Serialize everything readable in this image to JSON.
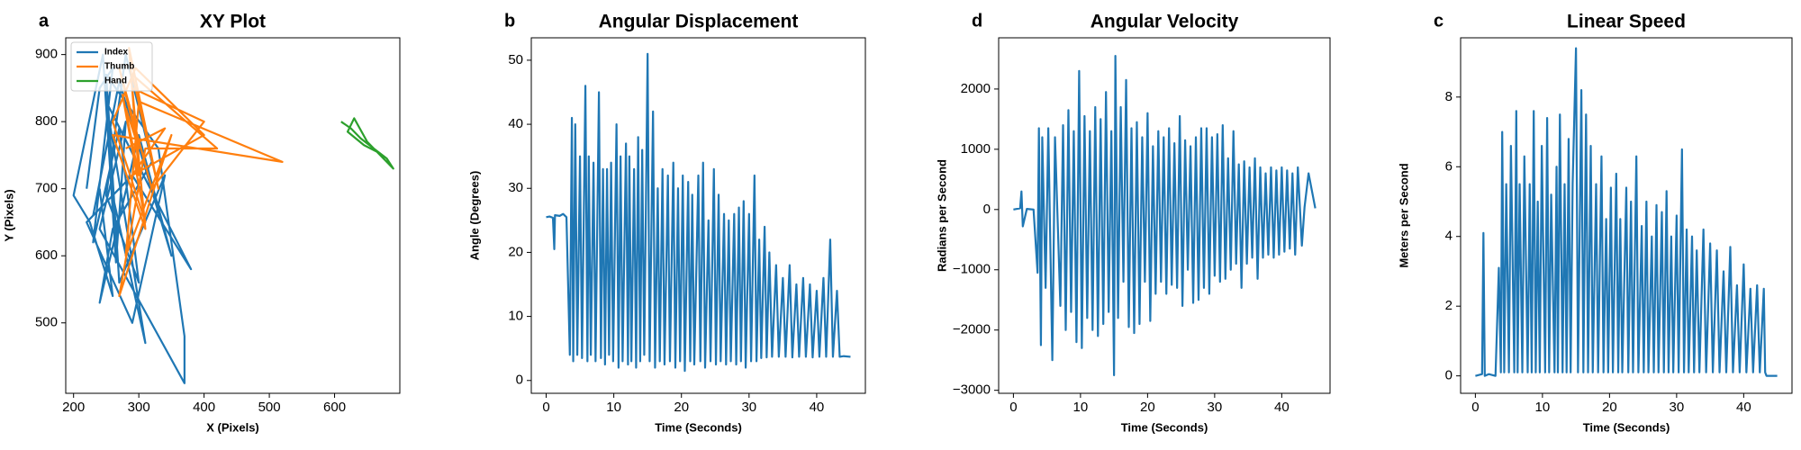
{
  "chart_data": [
    {
      "type": "line",
      "panel_label": "a",
      "title": "XY Plot",
      "x_label": "X (Pixels)",
      "y_label": "Y (Pixels)",
      "xlim": [
        188,
        700
      ],
      "ylim": [
        395,
        925
      ],
      "xticks": [
        200,
        300,
        400,
        500,
        600
      ],
      "yticks": [
        500,
        600,
        700,
        800,
        900
      ],
      "legend": "upper left",
      "series": [
        {
          "name": "Index",
          "color": "#1f77b4",
          "x": [
            220,
            240,
            260,
            230,
            270,
            300,
            250,
            280,
            320,
            260,
            240,
            300,
            350,
            270,
            230,
            290,
            380,
            250,
            310,
            260,
            220,
            290,
            340,
            270,
            250,
            330,
            370,
            370,
            240,
            280,
            265,
            245,
            200,
            225,
            260,
            240
          ],
          "values": [
            700,
            850,
            880,
            620,
            790,
            560,
            690,
            900,
            740,
            640,
            530,
            780,
            600,
            860,
            660,
            720,
            580,
            830,
            470,
            690,
            650,
            500,
            720,
            560,
            870,
            760,
            480,
            410,
            640,
            800,
            590,
            900,
            690,
            650,
            540,
            700
          ]
        },
        {
          "name": "Thumb",
          "color": "#ff7f0e",
          "x": [
            280,
            300,
            270,
            320,
            400,
            290,
            310,
            260,
            520,
            300,
            280,
            350,
            270,
            310,
            420,
            290,
            330,
            285,
            300,
            275,
            310,
            260,
            295,
            400,
            290,
            340,
            280
          ],
          "values": [
            820,
            760,
            880,
            700,
            800,
            850,
            640,
            780,
            740,
            830,
            600,
            780,
            540,
            760,
            760,
            870,
            700,
            910,
            720,
            840,
            650,
            800,
            880,
            780,
            720,
            790,
            760
          ]
        },
        {
          "name": "Hand",
          "color": "#2ca02c",
          "x": [
            610,
            625,
            640,
            660,
            680,
            690,
            670,
            650,
            630,
            620,
            645,
            665,
            685
          ],
          "values": [
            800,
            790,
            775,
            760,
            745,
            730,
            750,
            770,
            805,
            785,
            765,
            755,
            735
          ]
        }
      ]
    },
    {
      "type": "line",
      "panel_label": "b",
      "title": "Angular Displacement",
      "x_label": "Time (Seconds)",
      "y_label": "Angle (Degrees)",
      "xlim": [
        -2.2,
        47.2
      ],
      "ylim": [
        -2,
        53.5
      ],
      "xticks": [
        0,
        10,
        20,
        30,
        40
      ],
      "yticks": [
        0,
        10,
        20,
        30,
        40,
        50
      ],
      "series": [
        {
          "name": "Angle",
          "color": "#1f77b4",
          "x": [
            0,
            0.5,
            1,
            1.2,
            1.3,
            2,
            2.5,
            3,
            3.5,
            3.8,
            4.0,
            4.3,
            4.6,
            5,
            5.3,
            5.8,
            6.1,
            6.3,
            6.6,
            7,
            7.3,
            7.8,
            8.1,
            8.4,
            8.7,
            9,
            9.3,
            9.6,
            9.9,
            10.4,
            10.7,
            11,
            11.3,
            11.8,
            12.1,
            12.3,
            12.6,
            13,
            13.3,
            13.6,
            13.9,
            14.2,
            14.5,
            15,
            15.3,
            15.8,
            16.1,
            16.5,
            16.8,
            17.2,
            17.5,
            18,
            18.3,
            18.8,
            19.1,
            19.5,
            19.8,
            20.2,
            20.5,
            21,
            21.3,
            21.6,
            21.9,
            22.5,
            22.8,
            23.2,
            23.5,
            24,
            24.3,
            24.8,
            25.1,
            25.5,
            25.8,
            26.3,
            26.6,
            27,
            27.3,
            27.8,
            28.1,
            28.5,
            28.8,
            29.2,
            29.5,
            30,
            30.3,
            30.8,
            31.1,
            31.5,
            31.8,
            32.3,
            32.6,
            33,
            33.4,
            34,
            34.4,
            35,
            35.4,
            36,
            36.4,
            37,
            37.4,
            38,
            38.4,
            39,
            39.4,
            40,
            40.4,
            41,
            41.4,
            42,
            42.4,
            43,
            43.4,
            44,
            45
          ],
          "values": [
            25.5,
            25.6,
            25.4,
            20.5,
            25.8,
            25.7,
            26,
            25.5,
            4,
            41,
            3,
            40,
            4,
            35,
            3.5,
            46,
            3,
            35,
            4,
            34,
            3,
            45,
            3.5,
            33,
            2.5,
            33,
            4,
            34,
            3,
            40,
            2,
            35,
            3,
            37,
            2.5,
            35,
            3,
            33,
            2,
            38,
            3,
            36,
            4,
            51,
            3,
            42,
            2,
            30,
            3,
            33,
            2.5,
            32,
            3,
            34,
            2,
            30,
            3,
            32,
            1.5,
            31,
            3,
            29,
            2.5,
            32,
            3,
            34,
            2,
            25,
            3,
            33,
            2.5,
            29,
            3,
            26,
            2.5,
            25,
            3,
            26,
            2.5,
            27,
            3,
            28,
            2,
            26,
            3,
            32,
            3,
            22,
            3.5,
            24,
            3.6,
            20,
            3.7,
            18,
            3.7,
            16,
            3.7,
            18,
            3.6,
            15,
            3.7,
            16,
            3.7,
            15,
            3.6,
            14,
            3.7,
            16,
            3.7,
            22,
            3.7,
            14,
            3.7,
            3.8,
            3.7
          ]
        }
      ]
    },
    {
      "type": "line",
      "panel_label": "d",
      "title": "Angular Velocity",
      "x_label": "Time (Seconds)",
      "y_label": "Radians per Second",
      "xlim": [
        -2.2,
        47.2
      ],
      "ylim": [
        -3050,
        2850
      ],
      "xticks": [
        0,
        10,
        20,
        30,
        40
      ],
      "yticks": [
        {
          "value": -3000,
          "label": "−3000"
        },
        {
          "value": -2000,
          "label": "−2000"
        },
        {
          "value": -1000,
          "label": "−1000"
        },
        0,
        1000,
        2000
      ],
      "series": [
        {
          "name": "Velocity",
          "color": "#1f77b4",
          "x": [
            0,
            1,
            1.2,
            1.4,
            2,
            3,
            3.6,
            3.8,
            4.1,
            4.3,
            4.8,
            5.2,
            5.8,
            6.2,
            7,
            7.4,
            7.8,
            8.2,
            8.6,
            9,
            9.4,
            9.8,
            10.2,
            10.6,
            11,
            11.4,
            11.8,
            12.2,
            12.6,
            13,
            13.4,
            13.8,
            14.2,
            14.6,
            15,
            15.2,
            15.6,
            16,
            16.4,
            16.8,
            17.2,
            17.6,
            18,
            18.4,
            18.8,
            19.2,
            19.6,
            20,
            20.4,
            20.8,
            21.2,
            21.6,
            22,
            22.4,
            22.8,
            23.2,
            23.6,
            24,
            24.4,
            24.8,
            25.2,
            25.6,
            26,
            26.4,
            26.8,
            27.2,
            27.6,
            28,
            28.4,
            28.8,
            29.2,
            29.6,
            30,
            30.4,
            30.8,
            31.2,
            31.6,
            32,
            32.4,
            32.8,
            33.2,
            33.6,
            34,
            34.4,
            34.8,
            35.2,
            35.6,
            36,
            36.4,
            36.8,
            37.2,
            37.6,
            38,
            38.4,
            38.8,
            39.2,
            39.6,
            40,
            40.4,
            40.8,
            41.2,
            41.6,
            42,
            42.4,
            43,
            43.4,
            44,
            45
          ],
          "values": [
            0,
            20,
            300,
            -280,
            10,
            0,
            -1050,
            1350,
            -2250,
            1200,
            -1300,
            1350,
            -2500,
            1200,
            -1600,
            1400,
            -2000,
            1650,
            -1700,
            1300,
            -2200,
            2300,
            -2300,
            1550,
            -1800,
            1300,
            -2000,
            1700,
            -2100,
            1500,
            -1900,
            1950,
            -1700,
            1300,
            -2750,
            2550,
            -1800,
            1700,
            -1200,
            2150,
            -1950,
            1350,
            -2050,
            1450,
            -1900,
            1200,
            -1200,
            1600,
            -1850,
            1050,
            -1400,
            1300,
            -1200,
            1200,
            -1400,
            1350,
            -1250,
            1100,
            -1300,
            1550,
            -1600,
            1150,
            -1000,
            1050,
            -1550,
            1200,
            -1500,
            1350,
            -1300,
            1350,
            -1400,
            1200,
            -1100,
            1250,
            -1200,
            1400,
            -1150,
            850,
            -1000,
            1300,
            -900,
            750,
            -1300,
            800,
            -900,
            700,
            -800,
            850,
            -1150,
            700,
            -800,
            600,
            -750,
            700,
            -800,
            650,
            -750,
            700,
            -700,
            650,
            -650,
            600,
            -750,
            700,
            -600,
            40,
            600,
            20
          ]
        }
      ]
    },
    {
      "type": "line",
      "panel_label": "c",
      "title": "Linear Speed",
      "x_label": "Time (Seconds)",
      "y_label": "Meters per Second",
      "xlim": [
        -2.2,
        47.2
      ],
      "ylim": [
        -0.5,
        9.7
      ],
      "xticks": [
        0,
        10,
        20,
        30,
        40
      ],
      "yticks": [
        0,
        2,
        4,
        6,
        8
      ],
      "series": [
        {
          "name": "Speed",
          "color": "#1f77b4",
          "x": [
            0,
            1,
            1.2,
            1.4,
            2,
            3,
            3.5,
            3.8,
            4.0,
            4.3,
            4.6,
            5,
            5.3,
            5.8,
            6.1,
            6.3,
            6.6,
            7,
            7.3,
            7.8,
            8.1,
            8.4,
            8.7,
            9,
            9.3,
            9.6,
            9.9,
            10.4,
            10.7,
            11,
            11.3,
            11.8,
            12.1,
            12.3,
            12.6,
            13,
            13.3,
            13.6,
            13.9,
            14.2,
            14.5,
            15,
            15.3,
            15.8,
            16.1,
            16.5,
            16.8,
            17.2,
            17.5,
            18,
            18.3,
            18.8,
            19.1,
            19.5,
            19.8,
            20.2,
            20.5,
            21,
            21.3,
            21.6,
            21.9,
            22.5,
            22.8,
            23.2,
            23.5,
            24,
            24.3,
            24.8,
            25.1,
            25.5,
            25.8,
            26.3,
            26.6,
            27,
            27.3,
            27.8,
            28.1,
            28.5,
            28.8,
            29.2,
            29.5,
            30,
            30.3,
            30.8,
            31.1,
            31.5,
            31.8,
            32.3,
            32.6,
            33,
            33.4,
            34,
            34.4,
            35,
            35.4,
            36,
            36.4,
            37,
            37.4,
            38,
            38.4,
            39,
            39.4,
            40,
            40.4,
            41,
            41.4,
            42,
            42.4,
            43,
            43.2,
            43.4,
            44,
            45
          ],
          "values": [
            0,
            0.05,
            4.1,
            0,
            0.05,
            0,
            3.1,
            0.1,
            7,
            0.1,
            5.5,
            0.1,
            6.6,
            0.1,
            7.6,
            0.1,
            5.5,
            0.1,
            6.3,
            0.1,
            5.5,
            0.1,
            7.6,
            0.1,
            5,
            0.1,
            6.6,
            0.1,
            7.4,
            0.1,
            5.2,
            0.1,
            6,
            0.1,
            7.5,
            0.1,
            5.5,
            0.1,
            6.8,
            0.1,
            5.5,
            9.4,
            0.1,
            8.2,
            0.1,
            7.5,
            0.1,
            6.6,
            0.1,
            5.5,
            0.1,
            6.3,
            0.1,
            4.5,
            0.1,
            5.4,
            0.1,
            5.8,
            0.1,
            4.5,
            0.1,
            5.4,
            0.1,
            5,
            0.1,
            6.3,
            0.1,
            4.3,
            0.1,
            5,
            0.1,
            4,
            0.1,
            4.9,
            0.1,
            4.7,
            0.1,
            5.3,
            0.1,
            4,
            0.1,
            4.6,
            0.1,
            6.5,
            0.1,
            4.2,
            0.1,
            4,
            0.1,
            3.6,
            0.1,
            4.2,
            0.1,
            3.8,
            0.1,
            3.6,
            0.1,
            3,
            0.1,
            3.7,
            0.1,
            2.6,
            0.1,
            3.2,
            0.1,
            2.5,
            0.1,
            2.6,
            0.1,
            2.5,
            0.1,
            0,
            0,
            0
          ]
        }
      ]
    }
  ]
}
